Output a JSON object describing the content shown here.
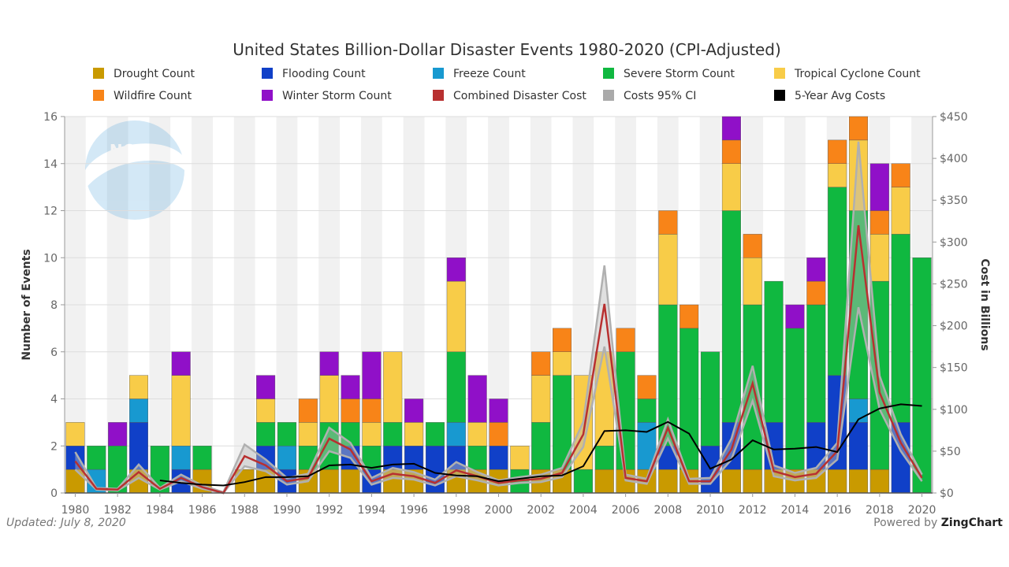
{
  "chart_data": {
    "type": "bar",
    "title": "United States Billion-Dollar Disaster Events 1980-2020 (CPI-Adjusted)",
    "ylabel": "Number of Events",
    "y2label": "Cost in Billions",
    "ylim": [
      0,
      16
    ],
    "y2lim": [
      0,
      450
    ],
    "yticks": [
      "0",
      "2",
      "4",
      "6",
      "8",
      "10",
      "12",
      "14",
      "16"
    ],
    "y2ticks": [
      "$0",
      "$50",
      "$100",
      "$150",
      "$200",
      "$250",
      "$300",
      "$350",
      "$400",
      "$450"
    ],
    "xtick_labels": [
      "1980",
      "1982",
      "1984",
      "1986",
      "1988",
      "1990",
      "1992",
      "1994",
      "1996",
      "1998",
      "2000",
      "2002",
      "2004",
      "2006",
      "2008",
      "2010",
      "2012",
      "2014",
      "2016",
      "2018",
      "2020"
    ],
    "x": [
      1980,
      1981,
      1982,
      1983,
      1984,
      1985,
      1986,
      1987,
      1988,
      1989,
      1990,
      1991,
      1992,
      1993,
      1994,
      1995,
      1996,
      1997,
      1998,
      1999,
      2000,
      2001,
      2002,
      2003,
      2004,
      2005,
      2006,
      2007,
      2008,
      2009,
      2010,
      2011,
      2012,
      2013,
      2014,
      2015,
      2016,
      2017,
      2018,
      2019,
      2020
    ],
    "series": [
      {
        "name": "Drought Count",
        "color": "#c99a00",
        "values": [
          1,
          0,
          0,
          1,
          0,
          0,
          1,
          0,
          1,
          1,
          0,
          1,
          1,
          1,
          0,
          1,
          1,
          0,
          1,
          1,
          1,
          0,
          1,
          1,
          0,
          1,
          1,
          1,
          1,
          1,
          0,
          1,
          1,
          1,
          1,
          1,
          1,
          1,
          1,
          0,
          0
        ]
      },
      {
        "name": "Flooding Count",
        "color": "#1040c8",
        "values": [
          1,
          0,
          0,
          2,
          0,
          1,
          0,
          0,
          0,
          1,
          1,
          0,
          0,
          1,
          1,
          1,
          1,
          2,
          1,
          0,
          1,
          0,
          0,
          0,
          0,
          0,
          0,
          0,
          1,
          0,
          2,
          2,
          0,
          2,
          0,
          2,
          4,
          2,
          0,
          3,
          0
        ]
      },
      {
        "name": "Freeze Count",
        "color": "#1899d0",
        "values": [
          0,
          1,
          0,
          1,
          0,
          1,
          0,
          0,
          0,
          0,
          1,
          0,
          0,
          0,
          0,
          0,
          0,
          0,
          1,
          0,
          0,
          0,
          0,
          0,
          0,
          0,
          0,
          2,
          0,
          0,
          0,
          0,
          0,
          0,
          0,
          0,
          0,
          1,
          0,
          0,
          0
        ]
      },
      {
        "name": "Severe Storm Count",
        "color": "#10b840",
        "values": [
          0,
          1,
          2,
          0,
          2,
          0,
          1,
          0,
          0,
          1,
          1,
          1,
          2,
          1,
          1,
          1,
          0,
          1,
          3,
          1,
          0,
          1,
          2,
          4,
          1,
          1,
          5,
          1,
          6,
          6,
          4,
          9,
          7,
          6,
          6,
          5,
          8,
          8,
          8,
          8,
          10
        ]
      },
      {
        "name": "Tropical Cyclone Count",
        "color": "#f8cc48",
        "values": [
          1,
          0,
          0,
          1,
          0,
          3,
          0,
          0,
          0,
          1,
          0,
          1,
          2,
          0,
          1,
          3,
          1,
          0,
          3,
          1,
          0,
          1,
          2,
          1,
          4,
          4,
          0,
          0,
          3,
          0,
          0,
          2,
          2,
          0,
          0,
          0,
          1,
          3,
          2,
          2,
          0
        ]
      },
      {
        "name": "Wildfire Count",
        "color": "#f88418",
        "values": [
          0,
          0,
          0,
          0,
          0,
          0,
          0,
          0,
          0,
          0,
          0,
          1,
          0,
          1,
          1,
          0,
          0,
          0,
          0,
          0,
          1,
          0,
          1,
          1,
          0,
          0,
          1,
          1,
          1,
          1,
          0,
          1,
          1,
          0,
          0,
          1,
          1,
          1,
          1,
          1,
          0
        ]
      },
      {
        "name": "Winter Storm Count",
        "color": "#9010c8",
        "values": [
          0,
          0,
          1,
          0,
          0,
          1,
          0,
          0,
          0,
          1,
          0,
          0,
          1,
          1,
          2,
          0,
          1,
          0,
          1,
          2,
          1,
          0,
          0,
          0,
          0,
          0,
          0,
          0,
          0,
          0,
          0,
          1,
          0,
          0,
          1,
          1,
          0,
          0,
          2,
          0,
          0
        ]
      }
    ],
    "lines": [
      {
        "name": "Combined Disaster Cost",
        "color": "#b83030",
        "values": [
          38,
          5,
          4,
          25,
          5,
          18,
          7,
          0,
          44,
          33,
          14,
          18,
          65,
          52,
          14,
          23,
          20,
          12,
          27,
          20,
          12,
          15,
          17,
          24,
          70,
          226,
          18,
          14,
          78,
          14,
          14,
          52,
          131,
          26,
          19,
          23,
          50,
          320,
          120,
          60,
          18
        ]
      },
      {
        "name": "Costs 95% CI",
        "color": "#aaaaaa",
        "upper": [
          49,
          6,
          5,
          34,
          6,
          22,
          9,
          1,
          58,
          40,
          18,
          23,
          78,
          60,
          18,
          30,
          25,
          16,
          37,
          25,
          15,
          19,
          22,
          30,
          85,
          272,
          22,
          17,
          88,
          17,
          18,
          65,
          152,
          33,
          24,
          30,
          60,
          420,
          140,
          70,
          22
        ],
        "lower": [
          28,
          4,
          3,
          18,
          4,
          14,
          5,
          0,
          32,
          26,
          10,
          14,
          50,
          42,
          10,
          18,
          16,
          9,
          20,
          15,
          9,
          12,
          13,
          19,
          55,
          175,
          15,
          11,
          65,
          11,
          11,
          40,
          110,
          20,
          15,
          18,
          40,
          222,
          100,
          50,
          14
        ]
      },
      {
        "name": "5-Year Avg Costs",
        "color": "#000000",
        "start_index": 4,
        "values": [
          null,
          null,
          null,
          null,
          15,
          12,
          10,
          9,
          13,
          19,
          19,
          20,
          33,
          34,
          30,
          34,
          35,
          24,
          21,
          20,
          14,
          17,
          20,
          21,
          32,
          74,
          75,
          73,
          85,
          71,
          29,
          40,
          63,
          52,
          53,
          55,
          49,
          88,
          101,
          106,
          104
        ]
      }
    ],
    "legend": [
      {
        "label": "Drought Count",
        "color": "#c99a00"
      },
      {
        "label": "Flooding Count",
        "color": "#1040c8"
      },
      {
        "label": "Freeze Count",
        "color": "#1899d0"
      },
      {
        "label": "Severe Storm Count",
        "color": "#10b840"
      },
      {
        "label": "Tropical Cyclone Count",
        "color": "#f8cc48"
      },
      {
        "label": "Wildfire Count",
        "color": "#f88418"
      },
      {
        "label": "Winter Storm Count",
        "color": "#9010c8"
      },
      {
        "label": "Combined Disaster Cost",
        "color": "#b83030"
      },
      {
        "label": "Costs 95% CI",
        "color": "#aaaaaa"
      },
      {
        "label": "5-Year Avg Costs",
        "color": "#000000"
      }
    ],
    "grid": true
  },
  "logo": {
    "text": "NOAA"
  },
  "footer": {
    "updated": "Updated: July 8, 2020",
    "powered_prefix": "Powered by ",
    "powered_brand": "ZingChart"
  }
}
